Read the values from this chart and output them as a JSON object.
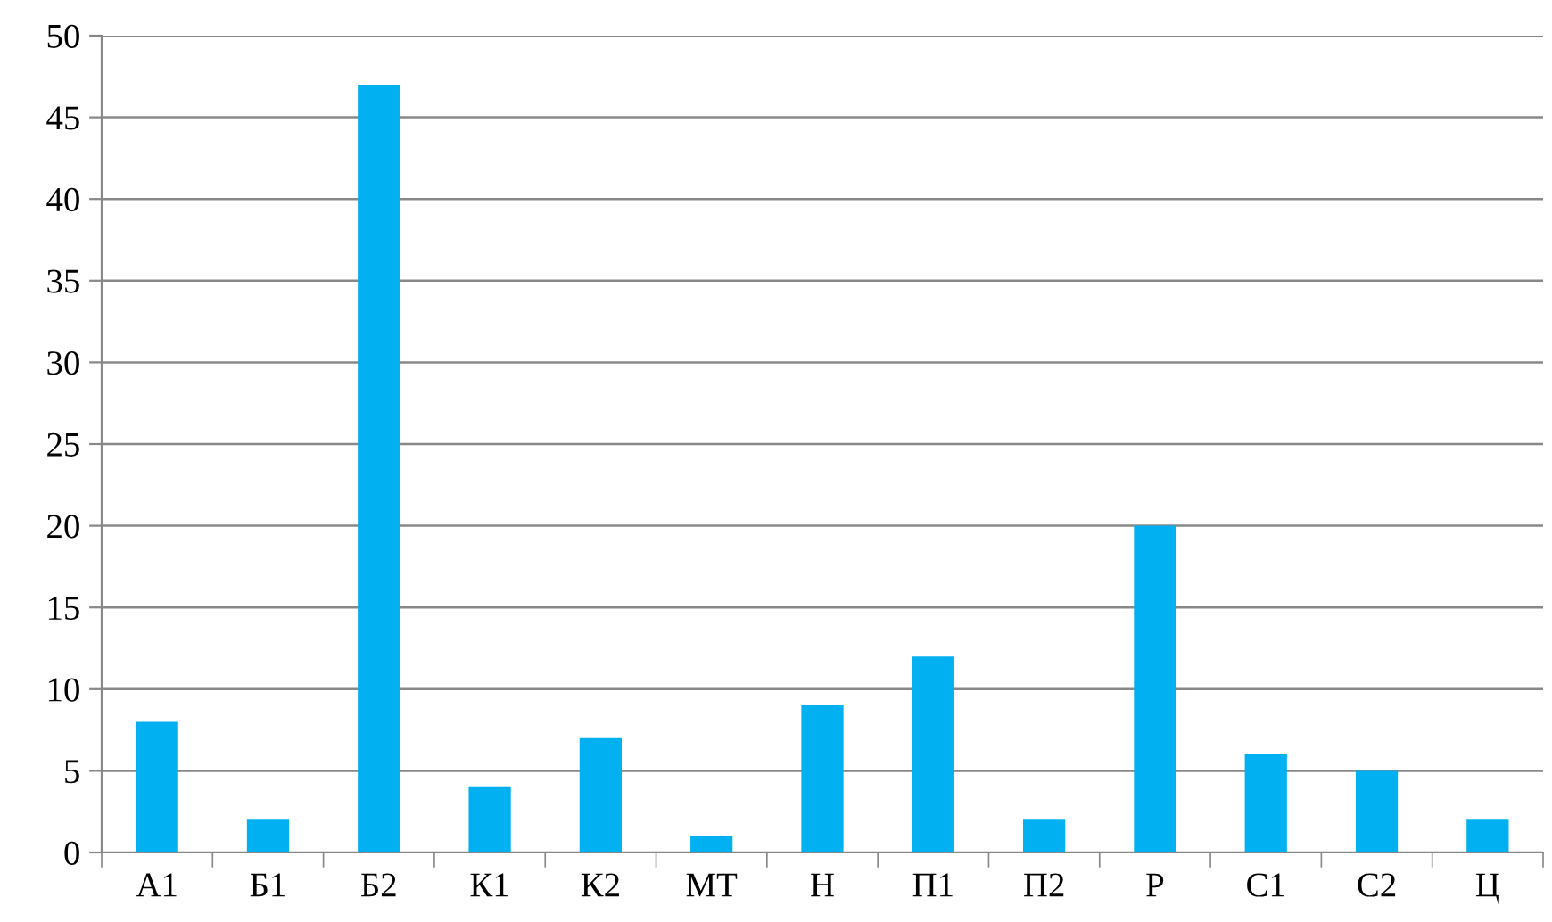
{
  "chart_data": {
    "type": "bar",
    "categories": [
      "А1",
      "Б1",
      "Б2",
      "К1",
      "К2",
      "МТ",
      "Н",
      "П1",
      "П2",
      "Р",
      "С1",
      "С2",
      "Ц"
    ],
    "values": [
      8,
      2,
      47,
      4,
      7,
      1,
      9,
      12,
      2,
      20,
      6,
      5,
      2
    ],
    "color": "#00b0f0",
    "ylim": [
      0,
      50
    ],
    "yticks": [
      0,
      5,
      10,
      15,
      20,
      25,
      30,
      35,
      40,
      45,
      50
    ],
    "grid": "y",
    "legend": false
  }
}
